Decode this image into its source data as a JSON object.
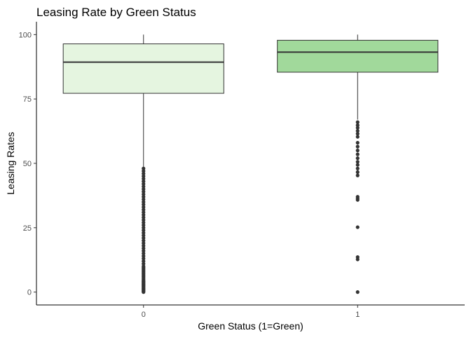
{
  "chart_data": {
    "type": "boxplot",
    "title": "Leasing Rate by Green Status",
    "xlabel": "Green Status (1=Green)",
    "ylabel": "Leasing Rates",
    "categories": [
      "0",
      "1"
    ],
    "ylim": [
      -5,
      105
    ],
    "yticks": [
      0,
      25,
      50,
      75,
      100
    ],
    "grid": false,
    "boxes": [
      {
        "category": "0",
        "fill": "#e5f5e0",
        "whisker_low": 48.5,
        "q1": 77.2,
        "median": 89.3,
        "q3": 96.4,
        "whisker_high": 100,
        "outliers": [
          0,
          0.3,
          0.6,
          0.9,
          1.2,
          1.5,
          1.8,
          2.1,
          2.4,
          2.7,
          3.0,
          3.3,
          3.6,
          3.9,
          4.2,
          4.5,
          5.0,
          5.5,
          6.0,
          6.5,
          7.0,
          7.5,
          8.0,
          8.5,
          9.0,
          9.5,
          10.0,
          11.0,
          12.0,
          13.0,
          14.0,
          15.0,
          16.0,
          17.0,
          18.0,
          19.0,
          20.0,
          21.0,
          22.0,
          23.0,
          24.0,
          25.0,
          26.0,
          27.0,
          28.0,
          29.0,
          30.0,
          31.0,
          32.0,
          33.0,
          34.0,
          35.0,
          36.0,
          37.0,
          38.0,
          39.0,
          40.0,
          41.0,
          42.0,
          43.0,
          44.0,
          45.0,
          46.0,
          47.0,
          48.0
        ]
      },
      {
        "category": "1",
        "fill": "#a1d99b",
        "whisker_low": 67,
        "q1": 85.4,
        "median": 93.2,
        "q3": 97.8,
        "whisker_high": 100,
        "outliers": [
          0,
          12.7,
          13.6,
          25.2,
          35.8,
          36.4,
          37.0,
          45.3,
          46.6,
          48.0,
          49.4,
          50.6,
          52.0,
          53.5,
          55.0,
          56.5,
          58.0,
          60.3,
          61.5,
          62.6,
          63.8,
          64.8,
          66.0
        ]
      }
    ]
  }
}
